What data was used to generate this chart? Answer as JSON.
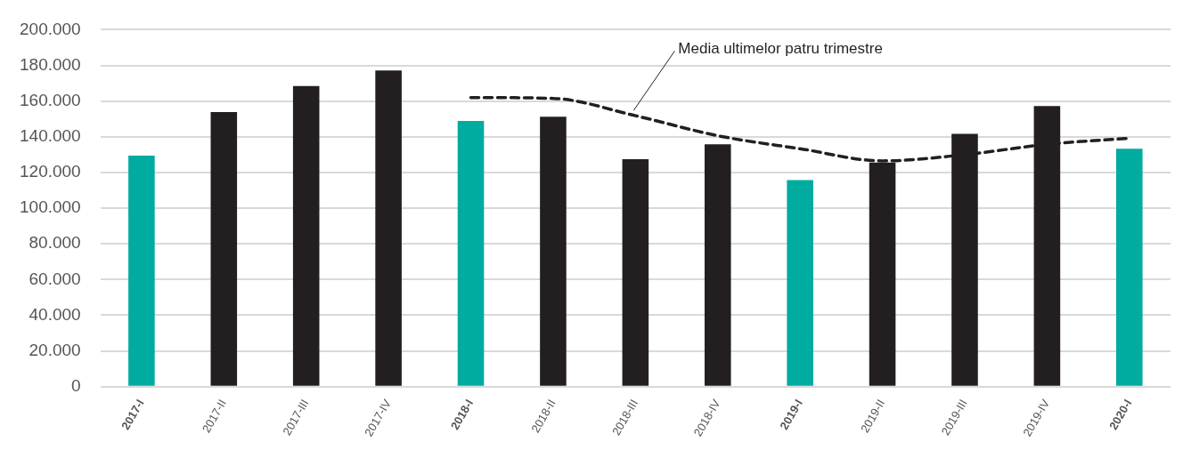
{
  "chart_data": {
    "type": "bar",
    "categories": [
      "2017-I",
      "2017-II",
      "2017-III",
      "2017-IV",
      "2018-I",
      "2018-II",
      "2018-III",
      "2018-IV",
      "2019-I",
      "2019-II",
      "2019-III",
      "2019-IV",
      "2020-I"
    ],
    "series": [
      {
        "color": "#231f20",
        "colors": [
          "#00ab9f",
          "#231f20",
          "#231f20",
          "#231f20",
          "#00ab9f",
          "#231f20",
          "#231f20",
          "#231f20",
          "#00ab9f",
          "#231f20",
          "#231f20",
          "#231f20",
          "#00ab9f"
        ],
        "values": [
          129500,
          153800,
          168400,
          177100,
          148900,
          151300,
          127500,
          135800,
          115800,
          125600,
          141600,
          157200,
          133300
        ]
      },
      {
        "type": "line",
        "color": "#231f20",
        "line_style": "dashed",
        "marker": "none",
        "values": [
          null,
          null,
          null,
          null,
          162000,
          161500,
          151800,
          140600,
          133300,
          126500,
          130000,
          135800,
          139200
        ]
      }
    ],
    "ylim": [
      0,
      200000
    ],
    "yticks": [
      {
        "value": 0,
        "label": "0"
      },
      {
        "value": 20000,
        "label": "20.000"
      },
      {
        "value": 40000,
        "label": "40.000"
      },
      {
        "value": 60000,
        "label": "60.000"
      },
      {
        "value": 80000,
        "label": "80.000"
      },
      {
        "value": 100000,
        "label": "100.000"
      },
      {
        "value": 120000,
        "label": "120.000"
      },
      {
        "value": 140000,
        "label": "140.000"
      },
      {
        "value": 160000,
        "label": "160.000"
      },
      {
        "value": 180000,
        "label": "180.000"
      },
      {
        "value": 200000,
        "label": "200.000"
      }
    ],
    "grid": "y",
    "legend": false,
    "annotations": [
      {
        "text": "Media ultimelor patru trimestre",
        "x": "2018-III",
        "y": 151800
      }
    ]
  }
}
